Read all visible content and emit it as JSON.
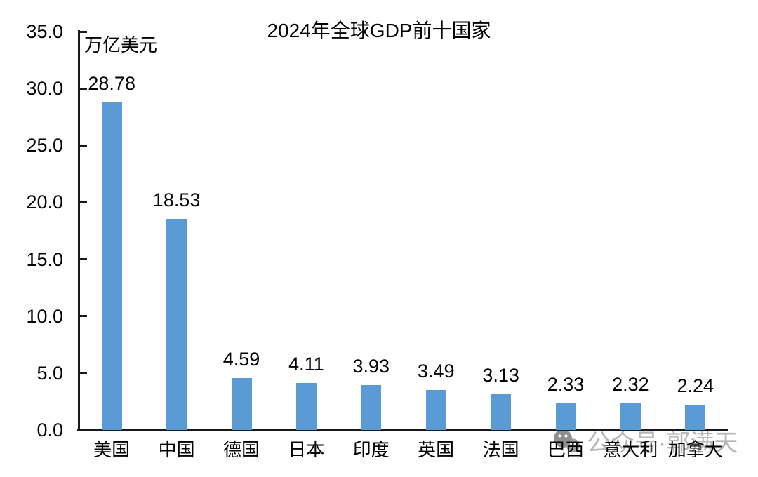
{
  "chart_data": {
    "type": "bar",
    "title": "2024年全球GDP前十国家",
    "ylabel": "万亿美元",
    "xlabel": "",
    "categories": [
      "美国",
      "中国",
      "德国",
      "日本",
      "印度",
      "英国",
      "法国",
      "巴西",
      "意大利",
      "加拿大"
    ],
    "values": [
      28.78,
      18.53,
      4.59,
      4.11,
      3.93,
      3.49,
      3.13,
      2.33,
      2.32,
      2.24
    ],
    "data_labels": [
      "28.78",
      "18.53",
      "4.59",
      "4.11",
      "3.93",
      "3.49",
      "3.13",
      "2.33",
      "2.32",
      "2.24"
    ],
    "ylim": [
      0,
      35
    ],
    "ytick_interval": 5,
    "ytick_labels": [
      "0.0",
      "5.0",
      "10.0",
      "15.0",
      "20.0",
      "25.0",
      "30.0",
      "35.0"
    ],
    "grid": false,
    "legend_position": "none",
    "bar_color": "#5B9BD5",
    "axis_color": "#1a1a1a",
    "text_color": "#000000"
  },
  "watermark": {
    "icon": "wechat-icon",
    "text": "公众号·郭满天",
    "color": "#b6b6b6"
  }
}
